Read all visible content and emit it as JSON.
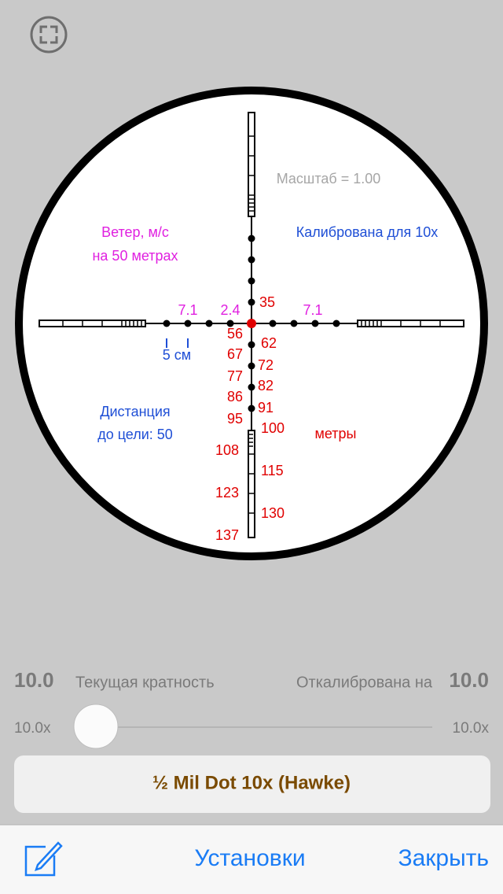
{
  "reticle": {
    "scale_label": "Масштаб = 1.00",
    "wind_title": [
      "Ветер, м/с",
      "на 50 метрах"
    ],
    "calibrated": "Калибрована для 10x",
    "wind_values": [
      "7.1",
      "2.4",
      "7.1"
    ],
    "size_label": "5 см",
    "distance_labels": [
      "35",
      "56",
      "62",
      "67",
      "72",
      "77",
      "82",
      "86",
      "91",
      "95",
      "100",
      "108",
      "115",
      "123",
      "130",
      "137"
    ],
    "units": "метры",
    "distance_title": [
      "Дистанция",
      "до цели: 50"
    ]
  },
  "magnification": {
    "current_value": "10.0",
    "current_label": "Текущая кратность",
    "calibrated_label": "Откалибрована на",
    "calibrated_value": "10.0"
  },
  "slider": {
    "min_label": "10.0x",
    "max_label": "10.0x"
  },
  "reticle_name": "½ Mil Dot 10x (Hawke)",
  "toolbar": {
    "settings": "Установки",
    "close": "Закрыть"
  }
}
